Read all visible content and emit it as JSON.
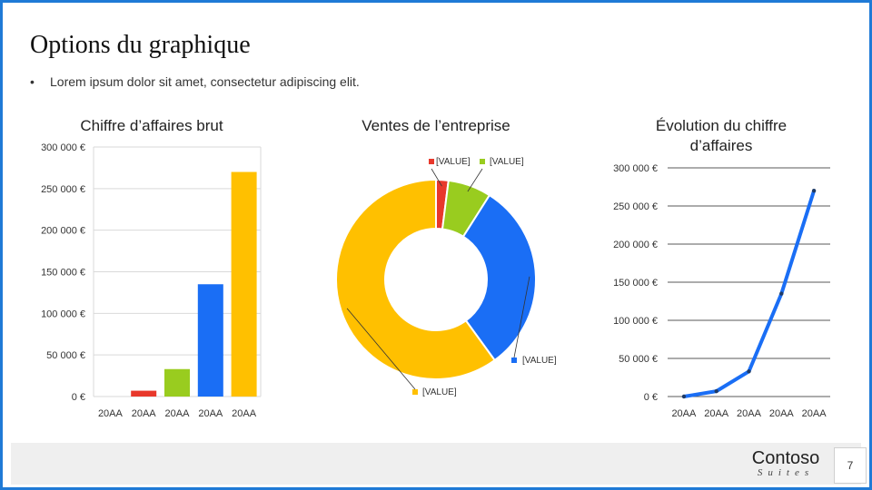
{
  "slide": {
    "title": "Options du graphique",
    "bullet": "Lorem ipsum dolor sit amet, consectetur adipiscing elit.",
    "brand_name": "Contoso",
    "brand_sub": "Suites",
    "page_number": "7"
  },
  "chart_data": [
    {
      "type": "bar",
      "title": "Chiffre d’affaires brut",
      "categories": [
        "20AA",
        "20AA",
        "20AA",
        "20AA",
        "20AA"
      ],
      "values": [
        0,
        7000,
        33000,
        135000,
        270000
      ],
      "colors": [
        "#e8382b",
        "#e8382b",
        "#99cc1f",
        "#1a6ef5",
        "#ffc000"
      ],
      "ylim": [
        0,
        300000
      ],
      "yticks": [
        "300 000 €",
        "250 000 €",
        "200 000 €",
        "150 000 €",
        "100 000 €",
        "50 000 €",
        "0 €"
      ],
      "grid": true
    },
    {
      "type": "pie",
      "title": "Ventes de l’entreprise",
      "values": [
        2,
        7,
        31,
        60
      ],
      "colors": [
        "#e8382b",
        "#99cc1f",
        "#1a6ef5",
        "#ffc000"
      ],
      "labels": [
        "[VALUE]",
        "[VALUE]",
        "[VALUE]",
        "[VALUE]"
      ],
      "hole": true
    },
    {
      "type": "line",
      "title": "Évolution du chiffre d’affaires",
      "categories": [
        "20AA",
        "20AA",
        "20AA",
        "20AA",
        "20AA"
      ],
      "values": [
        0,
        7000,
        33000,
        135000,
        270000
      ],
      "color": "#1a6ef5",
      "ylim": [
        0,
        300000
      ],
      "yticks": [
        "300 000 €",
        "250 000 €",
        "200 000 €",
        "150 000 €",
        "100 000 €",
        "50 000 €",
        "0 €"
      ],
      "grid": true
    }
  ]
}
